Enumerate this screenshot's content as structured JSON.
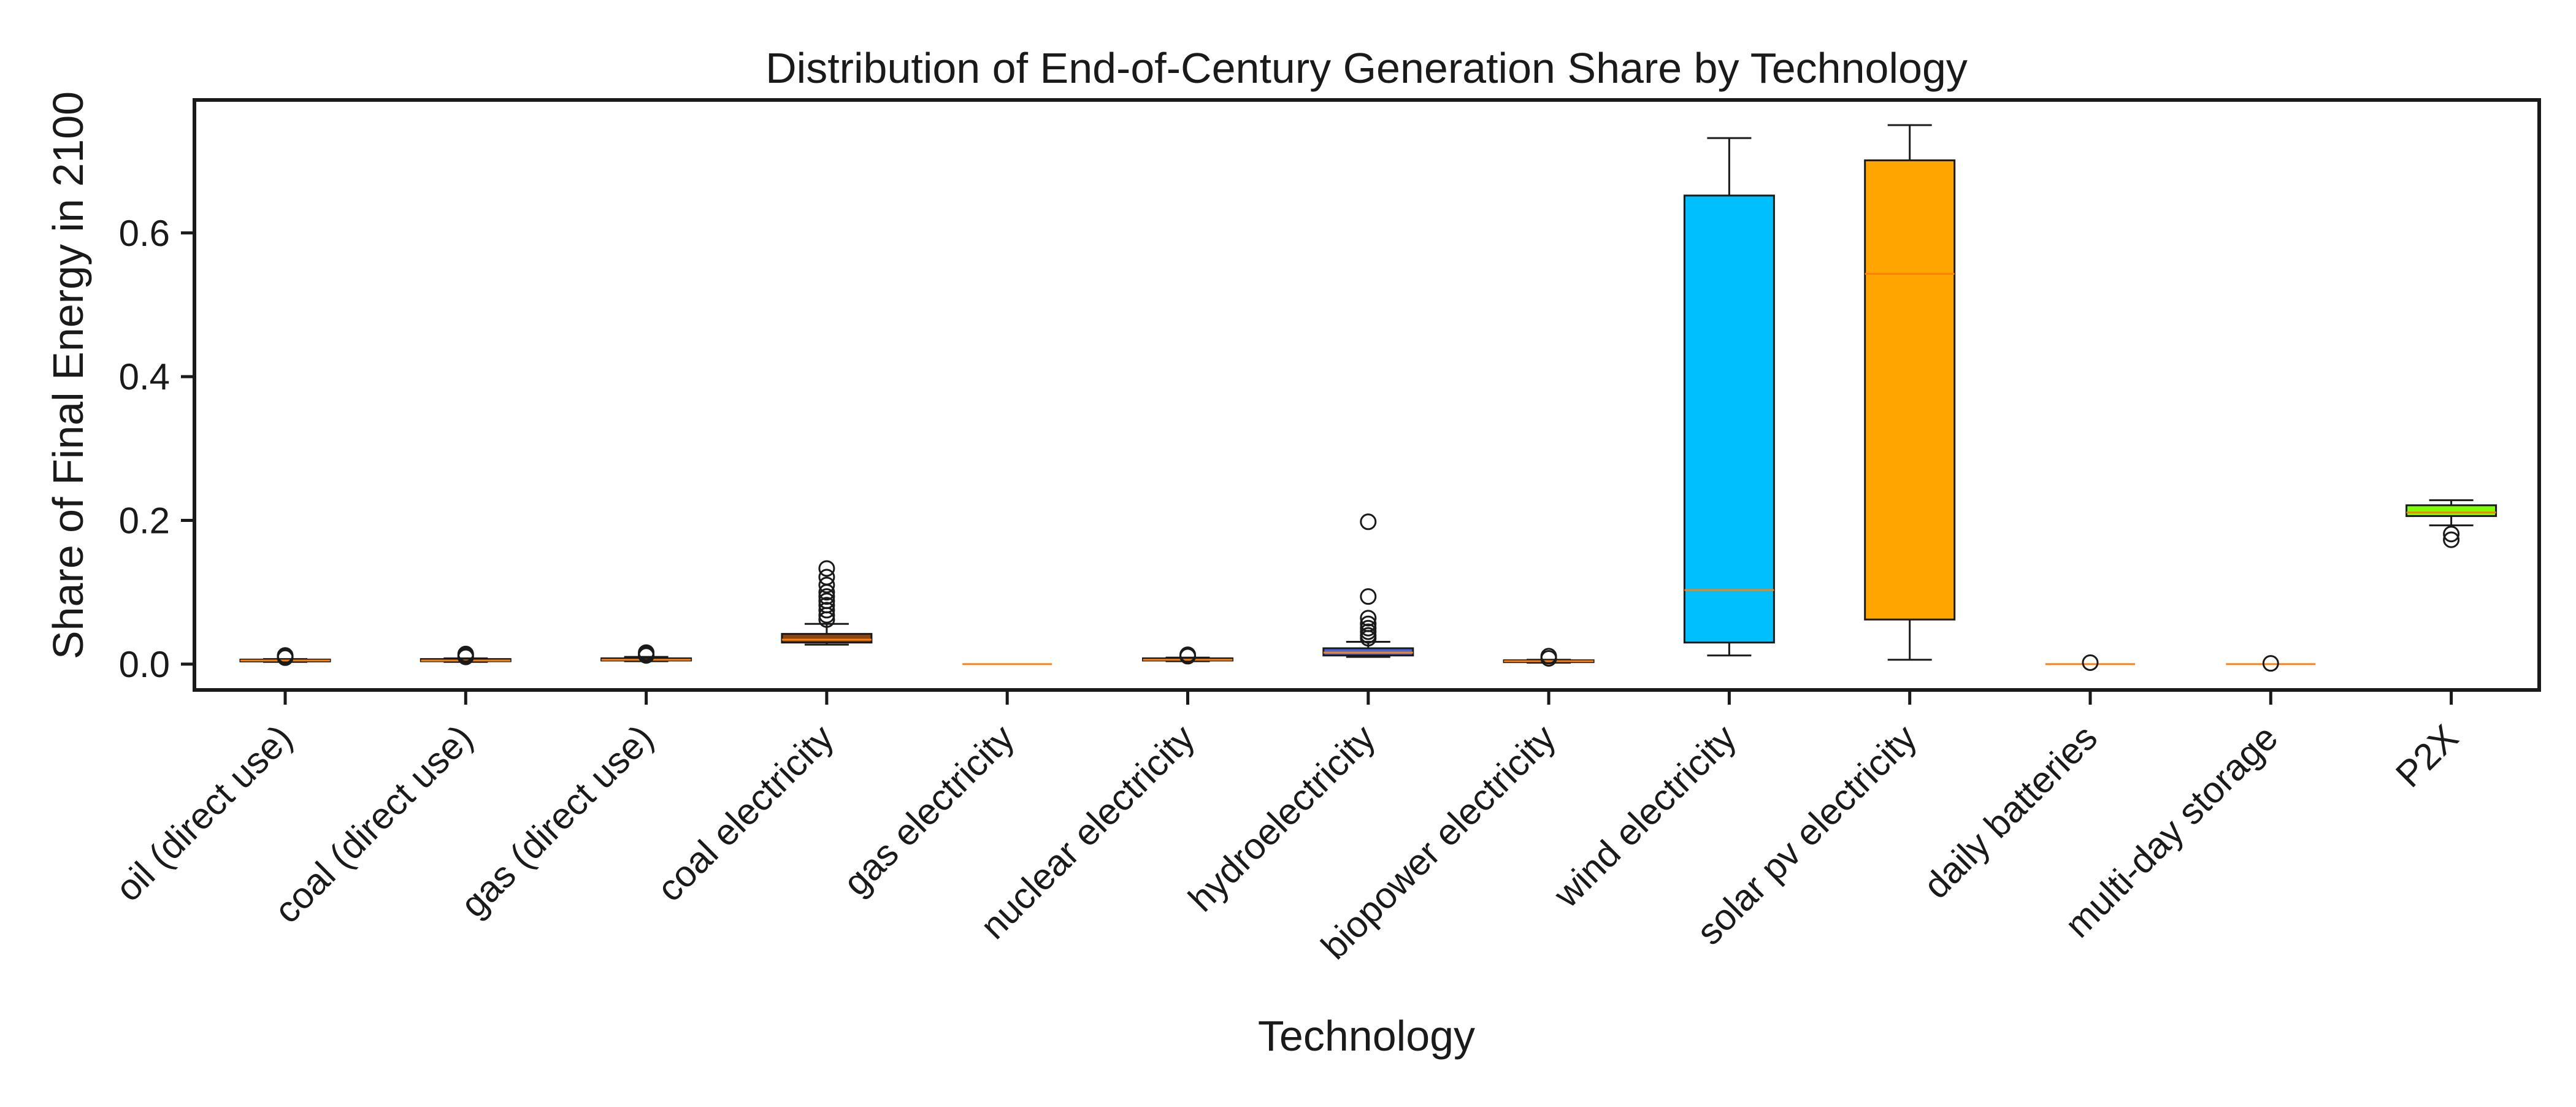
{
  "chart_data": {
    "type": "box",
    "title": "Distribution of End-of-Century Generation Share by Technology",
    "xlabel": "Technology",
    "ylabel": "Share of Final Energy in 2100",
    "ylim": [
      -0.036,
      0.785
    ],
    "yticks": [
      0.0,
      0.2,
      0.4,
      0.6
    ],
    "ytick_labels": [
      "0.0",
      "0.2",
      "0.4",
      "0.6"
    ],
    "grid": false,
    "legend": "none",
    "categories": [
      "oil (direct use)",
      "coal (direct use)",
      "gas (direct use)",
      "coal electricity",
      "gas electricity",
      "nuclear electricity",
      "hydroelectricity",
      "biopower electricity",
      "wind electricity",
      "solar pv electricity",
      "daily batteries",
      "multi-day storage",
      "P2X"
    ],
    "boxes": [
      {
        "category": "oil (direct use)",
        "whisker_low": 0.003,
        "q1": 0.004,
        "median": 0.005,
        "q3": 0.006,
        "whisker_high": 0.007,
        "outliers": [
          0.009,
          0.011,
          0.012
        ],
        "color": "#d2691e"
      },
      {
        "category": "coal (direct use)",
        "whisker_low": 0.003,
        "q1": 0.004,
        "median": 0.005,
        "q3": 0.007,
        "whisker_high": 0.008,
        "outliers": [
          0.01,
          0.012,
          0.014
        ],
        "color": "#8b4513"
      },
      {
        "category": "gas (direct use)",
        "whisker_low": 0.004,
        "q1": 0.005,
        "median": 0.006,
        "q3": 0.008,
        "whisker_high": 0.01,
        "outliers": [
          0.012,
          0.014,
          0.016
        ],
        "color": "#4682b4"
      },
      {
        "category": "coal electricity",
        "whisker_low": 0.027,
        "q1": 0.03,
        "median": 0.034,
        "q3": 0.042,
        "whisker_high": 0.056,
        "outliers": [
          0.062,
          0.068,
          0.075,
          0.082,
          0.088,
          0.094,
          0.1,
          0.11,
          0.121,
          0.133
        ],
        "color": "#8b4513"
      },
      {
        "category": "gas electricity",
        "whisker_low": 0.0,
        "q1": 0.0,
        "median": 0.0,
        "q3": 0.0,
        "whisker_high": 0.0,
        "outliers": [],
        "color": "#4682b4"
      },
      {
        "category": "nuclear electricity",
        "whisker_low": 0.004,
        "q1": 0.005,
        "median": 0.006,
        "q3": 0.008,
        "whisker_high": 0.009,
        "outliers": [
          0.011,
          0.013
        ],
        "color": "#4b0082"
      },
      {
        "category": "hydroelectricity",
        "whisker_low": 0.01,
        "q1": 0.012,
        "median": 0.016,
        "q3": 0.022,
        "whisker_high": 0.031,
        "outliers": [
          0.036,
          0.04,
          0.045,
          0.05,
          0.056,
          0.064,
          0.094,
          0.198
        ],
        "color": "#4169e1"
      },
      {
        "category": "biopower electricity",
        "whisker_low": 0.002,
        "q1": 0.003,
        "median": 0.004,
        "q3": 0.005,
        "whisker_high": 0.006,
        "outliers": [
          0.008,
          0.011
        ],
        "color": "#228b22"
      },
      {
        "category": "wind electricity",
        "whisker_low": 0.012,
        "q1": 0.03,
        "median": 0.103,
        "q3": 0.652,
        "whisker_high": 0.732,
        "outliers": [],
        "color": "#00bfff"
      },
      {
        "category": "solar pv electricity",
        "whisker_low": 0.006,
        "q1": 0.062,
        "median": 0.543,
        "q3": 0.701,
        "whisker_high": 0.75,
        "outliers": [],
        "color": "#ffa500"
      },
      {
        "category": "daily batteries",
        "whisker_low": 0.0,
        "q1": 0.0,
        "median": 0.0,
        "q3": 0.0,
        "whisker_high": 0.0,
        "outliers": [
          0.002
        ],
        "color": "#808080"
      },
      {
        "category": "multi-day storage",
        "whisker_low": 0.0,
        "q1": 0.0,
        "median": 0.0,
        "q3": 0.0,
        "whisker_high": 0.0,
        "outliers": [
          0.001
        ],
        "color": "#a9a9a9"
      },
      {
        "category": "P2X",
        "whisker_low": 0.193,
        "q1": 0.206,
        "median": 0.211,
        "q3": 0.221,
        "whisker_high": 0.228,
        "outliers": [
          0.173,
          0.181
        ],
        "color": "#7fff00"
      }
    ],
    "median_color": "#ff7f0e"
  }
}
